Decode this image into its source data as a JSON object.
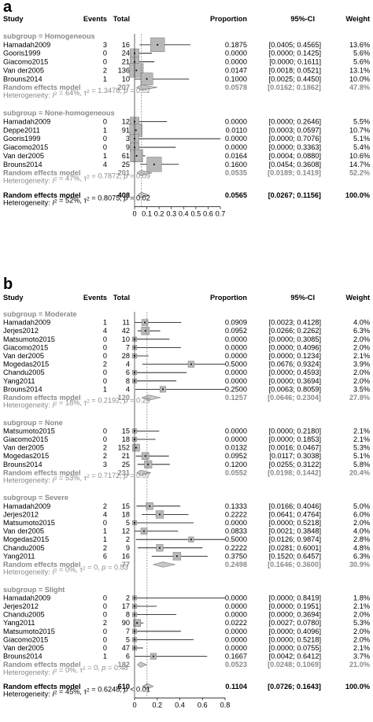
{
  "chart_data": [
    {
      "label": "a",
      "type": "forest",
      "headers": {
        "study": "Study",
        "events": "Events",
        "total": "Total",
        "proportion": "Proportion",
        "ci": "95%-CI",
        "weight": "Weight"
      },
      "xlim": [
        0,
        0.7
      ],
      "xticks": [
        0,
        0.1,
        0.2,
        0.3,
        0.4,
        0.5,
        0.6,
        0.7
      ],
      "xtick_labels": [
        "0",
        "0.1",
        "0.2",
        "0.3",
        "0.4",
        "0.5",
        "0.6",
        "0.7"
      ],
      "subgroups": [
        {
          "label": "subgroup = Homogeneous",
          "studies": [
            {
              "study": "Hamadah2009",
              "events": "3",
              "total": "16",
              "p": 0.1875,
              "lo": 0.0405,
              "hi": 0.4565,
              "prop": "0.1875",
              "ci": "[0.0405; 0.4565]",
              "weight": "13.6%"
            },
            {
              "study": "Gooris1999",
              "events": "0",
              "total": "24",
              "p": 0.0,
              "lo": 0.0,
              "hi": 0.1425,
              "prop": "0.0000",
              "ci": "[0.0000; 0.1425]",
              "weight": "5.6%"
            },
            {
              "study": "Giacomo2015",
              "events": "0",
              "total": "21",
              "p": 0.0,
              "lo": 0.0,
              "hi": 0.1611,
              "prop": "0.0000",
              "ci": "[0.0000; 0.1611]",
              "weight": "5.6%"
            },
            {
              "study": "Van der2005",
              "events": "2",
              "total": "136",
              "p": 0.0147,
              "lo": 0.0018,
              "hi": 0.0521,
              "prop": "0.0147",
              "ci": "[0.0018; 0.0521]",
              "weight": "13.1%"
            },
            {
              "study": "Brouns2014",
              "events": "1",
              "total": "10",
              "p": 0.1,
              "lo": 0.0025,
              "hi": 0.445,
              "prop": "0.1000",
              "ci": "[0.0025; 0.4450]",
              "weight": "10.0%"
            }
          ],
          "summary": {
            "label": "Random effects model",
            "total": "207",
            "p": 0.0578,
            "lo": 0.0162,
            "hi": 0.1862,
            "prop": "0.0578",
            "ci": "[0.0162; 0.1862]",
            "weight": "47.8%"
          },
          "het": {
            "prefix": "Heterogeneity: ",
            "i2": "I",
            "i2_rest": " = 64%, ",
            "tau": "τ",
            "tau_rest": " = 1.3478, ",
            "p": "p",
            "p_rest": " = 0.02"
          }
        },
        {
          "label": "subgroup = None-homogeneous",
          "studies": [
            {
              "study": "Hamadah2009",
              "events": "0",
              "total": "12",
              "p": 0.0,
              "lo": 0.0,
              "hi": 0.2646,
              "prop": "0.0000",
              "ci": "[0.0000; 0.2646]",
              "weight": "5.5%"
            },
            {
              "study": "Deppe2011",
              "events": "1",
              "total": "91",
              "p": 0.011,
              "lo": 0.0003,
              "hi": 0.0597,
              "prop": "0.0110",
              "ci": "[0.0003; 0.0597]",
              "weight": "10.7%"
            },
            {
              "study": "Gooris1999",
              "events": "0",
              "total": "3",
              "p": 0.0,
              "lo": 0.0,
              "hi": 0.7076,
              "prop": "0.0000",
              "ci": "[0.0000; 0.7076]",
              "weight": "5.1%"
            },
            {
              "study": "Giacomo2015",
              "events": "0",
              "total": "9",
              "p": 0.0,
              "lo": 0.0,
              "hi": 0.3363,
              "prop": "0.0000",
              "ci": "[0.0000; 0.3363]",
              "weight": "5.4%"
            },
            {
              "study": "Van der2005",
              "events": "1",
              "total": "61",
              "p": 0.0164,
              "lo": 0.0004,
              "hi": 0.088,
              "prop": "0.0164",
              "ci": "[0.0004; 0.0880]",
              "weight": "10.6%"
            },
            {
              "study": "Brouns2014",
              "events": "4",
              "total": "25",
              "p": 0.16,
              "lo": 0.0454,
              "hi": 0.3608,
              "prop": "0.1600",
              "ci": "[0.0454; 0.3608]",
              "weight": "14.7%"
            }
          ],
          "summary": {
            "label": "Random effects model",
            "total": "201",
            "p": 0.0535,
            "lo": 0.0189,
            "hi": 0.1419,
            "prop": "0.0535",
            "ci": "[0.0189; 0.1419]",
            "weight": "52.2%"
          },
          "het": {
            "prefix": "Heterogeneity: ",
            "i2": "I",
            "i2_rest": " = 47%, ",
            "tau": "τ",
            "tau_rest": " = 0.7872, ",
            "p": "p",
            "p_rest": " = 0.09"
          }
        }
      ],
      "overall": {
        "label": "Random effects model",
        "total": "408",
        "p": 0.0565,
        "lo": 0.0267,
        "hi": 0.1156,
        "prop": "0.0565",
        "ci": "[0.0267; 0.1156]",
        "weight": "100.0%"
      },
      "overall_het": {
        "prefix": "Heterogeneity: ",
        "i2": "I",
        "i2_rest": " = 52%, ",
        "tau": "τ",
        "tau_rest": " = 0.8075, ",
        "p": "p",
        "p_rest": " = 0.02"
      }
    },
    {
      "label": "b",
      "type": "forest",
      "headers": {
        "study": "Study",
        "events": "Events",
        "total": "Total",
        "proportion": "Proportion",
        "ci": "95%-CI",
        "weight": "Weight"
      },
      "xlim": [
        0,
        0.8
      ],
      "xticks": [
        0,
        0.2,
        0.4,
        0.6,
        0.8
      ],
      "xtick_labels": [
        "0",
        "0.2",
        "0.4",
        "0.6",
        "0.8"
      ],
      "subgroups": [
        {
          "label": "subgroup = Moderate",
          "studies": [
            {
              "study": "Hamadah2009",
              "events": "1",
              "total": "11",
              "p": 0.0909,
              "lo": 0.0023,
              "hi": 0.4128,
              "prop": "0.0909",
              "ci": "[0.0023; 0.4128]",
              "weight": "4.0%"
            },
            {
              "study": "Jerjes2012",
              "events": "4",
              "total": "42",
              "p": 0.0952,
              "lo": 0.0266,
              "hi": 0.2262,
              "prop": "0.0952",
              "ci": "[0.0266; 0.2262]",
              "weight": "6.3%"
            },
            {
              "study": "Matsumoto2015",
              "events": "0",
              "total": "10",
              "p": 0.0,
              "lo": 0.0,
              "hi": 0.3085,
              "prop": "0.0000",
              "ci": "[0.0000; 0.3085]",
              "weight": "2.0%"
            },
            {
              "study": "Giacomo2015",
              "events": "0",
              "total": "7",
              "p": 0.0,
              "lo": 0.0,
              "hi": 0.4096,
              "prop": "0.0000",
              "ci": "[0.0000; 0.4096]",
              "weight": "2.0%"
            },
            {
              "study": "Van der2005",
              "events": "0",
              "total": "28",
              "p": 0.0,
              "lo": 0.0,
              "hi": 0.1234,
              "prop": "0.0000",
              "ci": "[0.0000; 0.1234]",
              "weight": "2.1%"
            },
            {
              "study": "Mogedas2015",
              "events": "2",
              "total": "4",
              "p": 0.5,
              "lo": 0.0676,
              "hi": 0.9324,
              "prop": "0.5000",
              "ci": "[0.0676; 0.9324]",
              "weight": "3.9%"
            },
            {
              "study": "Chandu2005",
              "events": "0",
              "total": "6",
              "p": 0.0,
              "lo": 0.0,
              "hi": 0.4593,
              "prop": "0.0000",
              "ci": "[0.0000; 0.4593]",
              "weight": "2.0%"
            },
            {
              "study": "Yang2011",
              "events": "0",
              "total": "8",
              "p": 0.0,
              "lo": 0.0,
              "hi": 0.3694,
              "prop": "0.0000",
              "ci": "[0.0000; 0.3694]",
              "weight": "2.0%"
            },
            {
              "study": "Brouns2014",
              "events": "1",
              "total": "4",
              "p": 0.25,
              "lo": 0.0063,
              "hi": 0.8059,
              "prop": "0.2500",
              "ci": "[0.0063; 0.8059]",
              "weight": "3.5%"
            }
          ],
          "summary": {
            "label": "Random effects model",
            "total": "120",
            "p": 0.1257,
            "lo": 0.0646,
            "hi": 0.2304,
            "prop": "0.1257",
            "ci": "[0.0646; 0.2304]",
            "weight": "27.8%"
          },
          "het": {
            "prefix": "Heterogeneity: ",
            "i2": "I",
            "i2_rest": " = 18%, ",
            "tau": "τ",
            "tau_rest": " = 0.2192, ",
            "p": "p",
            "p_rest": " = 0.29"
          }
        },
        {
          "label": "subgroup = None",
          "studies": [
            {
              "study": "Matsumoto2015",
              "events": "0",
              "total": "15",
              "p": 0.0,
              "lo": 0.0,
              "hi": 0.218,
              "prop": "0.0000",
              "ci": "[0.0000; 0.2180]",
              "weight": "2.1%"
            },
            {
              "study": "Giacomo2015",
              "events": "0",
              "total": "18",
              "p": 0.0,
              "lo": 0.0,
              "hi": 0.1853,
              "prop": "0.0000",
              "ci": "[0.0000; 0.1853]",
              "weight": "2.1%"
            },
            {
              "study": "Van der2005",
              "events": "2",
              "total": "152",
              "p": 0.0132,
              "lo": 0.0016,
              "hi": 0.0467,
              "prop": "0.0132",
              "ci": "[0.0016; 0.0467]",
              "weight": "5.3%"
            },
            {
              "study": "Mogedas2015",
              "events": "2",
              "total": "21",
              "p": 0.0952,
              "lo": 0.0117,
              "hi": 0.3038,
              "prop": "0.0952",
              "ci": "[0.0117; 0.3038]",
              "weight": "5.1%"
            },
            {
              "study": "Brouns2014",
              "events": "3",
              "total": "25",
              "p": 0.12,
              "lo": 0.0255,
              "hi": 0.3122,
              "prop": "0.1200",
              "ci": "[0.0255; 0.3122]",
              "weight": "5.8%"
            }
          ],
          "summary": {
            "label": "Random effects model",
            "total": "231",
            "p": 0.0552,
            "lo": 0.0198,
            "hi": 0.1442,
            "prop": "0.0552",
            "ci": "[0.0198; 0.1442]",
            "weight": "20.4%"
          },
          "het": {
            "prefix": "Heterogeneity: ",
            "i2": "I",
            "i2_rest": " = 53%, ",
            "tau": "τ",
            "tau_rest": " = 0.7172, ",
            "p": "p",
            "p_rest": " = 0.07"
          }
        },
        {
          "label": "subgroup = Severe",
          "studies": [
            {
              "study": "Hamadah2009",
              "events": "2",
              "total": "15",
              "p": 0.1333,
              "lo": 0.0166,
              "hi": 0.4046,
              "prop": "0.1333",
              "ci": "[0.0166; 0.4046]",
              "weight": "5.0%"
            },
            {
              "study": "Jerjes2012",
              "events": "4",
              "total": "18",
              "p": 0.2222,
              "lo": 0.0641,
              "hi": 0.4764,
              "prop": "0.2222",
              "ci": "[0.0641; 0.4764]",
              "weight": "6.0%"
            },
            {
              "study": "Matsumoto2015",
              "events": "0",
              "total": "5",
              "p": 0.0,
              "lo": 0.0,
              "hi": 0.5218,
              "prop": "0.0000",
              "ci": "[0.0000; 0.5218]",
              "weight": "2.0%"
            },
            {
              "study": "Van der2005",
              "events": "1",
              "total": "12",
              "p": 0.0833,
              "lo": 0.0021,
              "hi": 0.3848,
              "prop": "0.0833",
              "ci": "[0.0021; 0.3848]",
              "weight": "4.0%"
            },
            {
              "study": "Mogedas2015",
              "events": "1",
              "total": "2",
              "p": 0.5,
              "lo": 0.0126,
              "hi": 0.9874,
              "prop": "0.5000",
              "ci": "[0.0126; 0.9874]",
              "weight": "2.8%"
            },
            {
              "study": "Chandu2005",
              "events": "2",
              "total": "9",
              "p": 0.2222,
              "lo": 0.0281,
              "hi": 0.6001,
              "prop": "0.2222",
              "ci": "[0.0281; 0.6001]",
              "weight": "4.8%"
            },
            {
              "study": "Yang2011",
              "events": "6",
              "total": "16",
              "p": 0.375,
              "lo": 0.152,
              "hi": 0.6457,
              "prop": "0.3750",
              "ci": "[0.1520; 0.6457]",
              "weight": "6.3%"
            }
          ],
          "summary": {
            "label": "Random effects model",
            "total": "77",
            "p": 0.2498,
            "lo": 0.1646,
            "hi": 0.36,
            "prop": "0.2498",
            "ci": "[0.1646; 0.3600]",
            "weight": "30.9%"
          },
          "het": {
            "prefix": "Heterogeneity: ",
            "i2": "I",
            "i2_rest": " = 0%, ",
            "tau": "τ",
            "tau_rest": " = 0, ",
            "p": "p",
            "p_rest": " = 0.53"
          }
        },
        {
          "label": "subgroup = Slight",
          "studies": [
            {
              "study": "Hamadah2009",
              "events": "0",
              "total": "2",
              "p": 0.0,
              "lo": 0.0,
              "hi": 0.8419,
              "prop": "0.0000",
              "ci": "[0.0000; 0.8419]",
              "weight": "1.8%"
            },
            {
              "study": "Jerjes2012",
              "events": "0",
              "total": "17",
              "p": 0.0,
              "lo": 0.0,
              "hi": 0.1951,
              "prop": "0.0000",
              "ci": "[0.0000; 0.1951]",
              "weight": "2.1%"
            },
            {
              "study": "Chandu2005",
              "events": "0",
              "total": "8",
              "p": 0.0,
              "lo": 0.0,
              "hi": 0.3694,
              "prop": "0.0000",
              "ci": "[0.0000; 0.3694]",
              "weight": "2.0%"
            },
            {
              "study": "Yang2011",
              "events": "2",
              "total": "90",
              "p": 0.0222,
              "lo": 0.0027,
              "hi": 0.078,
              "prop": "0.0222",
              "ci": "[0.0027; 0.0780]",
              "weight": "5.3%"
            },
            {
              "study": "Matsumoto2015",
              "events": "0",
              "total": "7",
              "p": 0.0,
              "lo": 0.0,
              "hi": 0.4096,
              "prop": "0.0000",
              "ci": "[0.0000; 0.4096]",
              "weight": "2.0%"
            },
            {
              "study": "Giacomo2015",
              "events": "0",
              "total": "5",
              "p": 0.0,
              "lo": 0.0,
              "hi": 0.5218,
              "prop": "0.0000",
              "ci": "[0.0000; 0.5218]",
              "weight": "2.0%"
            },
            {
              "study": "Van der2005",
              "events": "0",
              "total": "47",
              "p": 0.0,
              "lo": 0.0,
              "hi": 0.0755,
              "prop": "0.0000",
              "ci": "[0.0000; 0.0755]",
              "weight": "2.1%"
            },
            {
              "study": "Brouns2014",
              "events": "1",
              "total": "6",
              "p": 0.1667,
              "lo": 0.0042,
              "hi": 0.6412,
              "prop": "0.1667",
              "ci": "[0.0042; 0.6412]",
              "weight": "3.7%"
            }
          ],
          "summary": {
            "label": "Random effects model",
            "total": "182",
            "p": 0.0523,
            "lo": 0.0248,
            "hi": 0.1069,
            "prop": "0.0523",
            "ci": "[0.0248; 0.1069]",
            "weight": "21.0%"
          },
          "het": {
            "prefix": "Heterogeneity: ",
            "i2": "I",
            "i2_rest": " = 0%, ",
            "tau": "τ",
            "tau_rest": " = 0, ",
            "p": "p",
            "p_rest": " = 0.48"
          }
        }
      ],
      "overall": {
        "label": "Random effects model",
        "total": "610",
        "p": 0.1104,
        "lo": 0.0726,
        "hi": 0.1643,
        "prop": "0.1104",
        "ci": "[0.0726; 0.1643]",
        "weight": "100.0%"
      },
      "overall_het": {
        "prefix": "Heterogeneity: ",
        "i2": "I",
        "i2_rest": " = 45%, ",
        "tau": "τ",
        "tau_rest": " = 0.6248, ",
        "p": "p",
        "p_rest": " < 0.01"
      }
    }
  ]
}
